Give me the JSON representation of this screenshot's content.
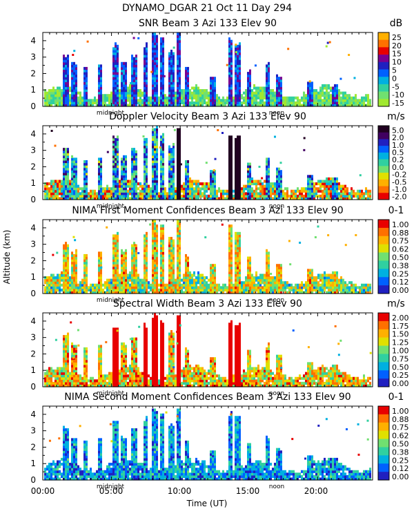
{
  "figure": {
    "title": "DYNAMO_DGAR  21 Oct 11 Day 294",
    "ylabel": "Altitude (km)",
    "xlabel": "Time (UT)"
  },
  "chart_data": [
    {
      "type": "heatmap",
      "title": "SNR Beam 3 Azi 133 Elev 90",
      "unit": "dB",
      "colorbar_ticks": [
        "25",
        "20",
        "15",
        "10",
        "5",
        "0",
        "-5",
        "-10",
        "-15"
      ],
      "colorbar_colors": [
        "#ffb000",
        "#ff7000",
        "#e80000",
        "#7a0090",
        "#2020c0",
        "#0060ff",
        "#00b0e0",
        "#30d0a0",
        "#70e070",
        "#a0e830"
      ],
      "x_ticks": [
        "00:00",
        "05:00",
        "10:00",
        "15:00",
        "20:00"
      ],
      "y_ticks": [
        "0",
        "1",
        "2",
        "3",
        "4"
      ],
      "xlim": [
        0,
        24
      ],
      "ylim": [
        0,
        4.5
      ],
      "markers": {
        "midnight": "midnight",
        "noon": "noon"
      }
    },
    {
      "type": "heatmap",
      "title": "Doppler Velocity Beam 3 Azi 133 Elev 90",
      "unit": "m/s",
      "colorbar_ticks": [
        "5.0",
        "2.0",
        "1.0",
        "0.5",
        "0.2",
        "0.0",
        "-0.2",
        "-0.5",
        "-1.0",
        "-2.0"
      ],
      "colorbar_colors": [
        "#200020",
        "#400060",
        "#2020c0",
        "#0060ff",
        "#00b0e0",
        "#30d0a0",
        "#70e070",
        "#e0e000",
        "#ffb000",
        "#ff7000",
        "#e80000"
      ],
      "x_ticks": [
        "00:00",
        "05:00",
        "10:00",
        "15:00",
        "20:00"
      ],
      "y_ticks": [
        "0",
        "1",
        "2",
        "3",
        "4"
      ],
      "xlim": [
        0,
        24
      ],
      "ylim": [
        0,
        4.5
      ],
      "markers": {
        "midnight": "midnight",
        "noon": "noon"
      }
    },
    {
      "type": "heatmap",
      "title": "NIMA First Moment Confidences Beam 3 Azi 133 Elev 90",
      "unit": "0-1",
      "colorbar_ticks": [
        "1.00",
        "0.88",
        "0.75",
        "0.62",
        "0.50",
        "0.38",
        "0.25",
        "0.12",
        "0.00"
      ],
      "colorbar_colors": [
        "#e80000",
        "#ff7000",
        "#ffb000",
        "#e0e000",
        "#70e070",
        "#30d0a0",
        "#00b0e0",
        "#0060ff",
        "#2020c0"
      ],
      "x_ticks": [
        "00:00",
        "05:00",
        "10:00",
        "15:00",
        "20:00"
      ],
      "y_ticks": [
        "0",
        "1",
        "2",
        "3",
        "4"
      ],
      "xlim": [
        0,
        24
      ],
      "ylim": [
        0,
        4.5
      ],
      "markers": {
        "midnight": "midnight",
        "noon": "noon"
      }
    },
    {
      "type": "heatmap",
      "title": "Spectral Width Beam 3 Azi 133 Elev 90",
      "unit": "m/s",
      "colorbar_ticks": [
        "2.00",
        "1.75",
        "1.50",
        "1.25",
        "1.00",
        "0.75",
        "0.50",
        "0.25",
        "0.00"
      ],
      "colorbar_colors": [
        "#e80000",
        "#ff7000",
        "#ffb000",
        "#e0e000",
        "#70e070",
        "#30d0a0",
        "#00b0e0",
        "#0060ff",
        "#2020c0"
      ],
      "x_ticks": [
        "00:00",
        "05:00",
        "10:00",
        "15:00",
        "20:00"
      ],
      "y_ticks": [
        "0",
        "1",
        "2",
        "3",
        "4"
      ],
      "xlim": [
        0,
        24
      ],
      "ylim": [
        0,
        4.5
      ],
      "markers": {
        "midnight": "midnight",
        "noon": "noon"
      }
    },
    {
      "type": "heatmap",
      "title": "NIMA Second Moment Confidences Beam 3 Azi 133 Elev 90",
      "unit": "0-1",
      "colorbar_ticks": [
        "1.00",
        "0.88",
        "0.75",
        "0.62",
        "0.50",
        "0.38",
        "0.25",
        "0.12",
        "0.00"
      ],
      "colorbar_colors": [
        "#e80000",
        "#ff7000",
        "#ffb000",
        "#e0e000",
        "#70e070",
        "#30d0a0",
        "#00b0e0",
        "#0060ff",
        "#2020c0"
      ],
      "x_ticks": [
        "00:00",
        "05:00",
        "10:00",
        "15:00",
        "20:00"
      ],
      "y_ticks": [
        "0",
        "1",
        "2",
        "3",
        "4"
      ],
      "xlim": [
        0,
        24
      ],
      "ylim": [
        0,
        4.5
      ],
      "markers": {
        "midnight": "midnight",
        "noon": "noon"
      }
    }
  ]
}
